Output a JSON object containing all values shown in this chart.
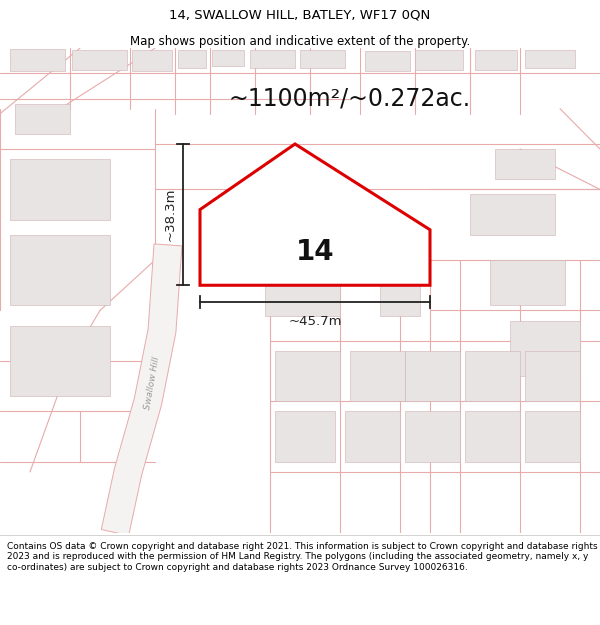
{
  "title": "14, SWALLOW HILL, BATLEY, WF17 0QN",
  "subtitle": "Map shows position and indicative extent of the property.",
  "area_text": "~1100m²/~0.272ac.",
  "plot_number": "14",
  "dim_width": "~45.7m",
  "dim_height": "~38.3m",
  "road_label": "Swallow Hill",
  "footer": "Contains OS data © Crown copyright and database right 2021. This information is subject to Crown copyright and database rights 2023 and is reproduced with the permission of HM Land Registry. The polygons (including the associated geometry, namely x, y co-ordinates) are subject to Crown copyright and database rights 2023 Ordnance Survey 100026316.",
  "map_bg": "#faf8f8",
  "block_fill": "#e8e4e4",
  "block_edge": "#d0b0b0",
  "plot_outline": "#dd0000",
  "road_line_color": "#e8aaaa",
  "plot_fill": "#ffffff",
  "dim_color": "#222222",
  "road_fill": "#f0eded",
  "title_color": "#000000",
  "footer_color": "#000000",
  "title_fontsize": 9.5,
  "subtitle_fontsize": 8.5,
  "area_fontsize": 17,
  "number_fontsize": 20,
  "dim_fontsize": 9.5,
  "road_label_fontsize": 6.5,
  "footer_fontsize": 6.5
}
